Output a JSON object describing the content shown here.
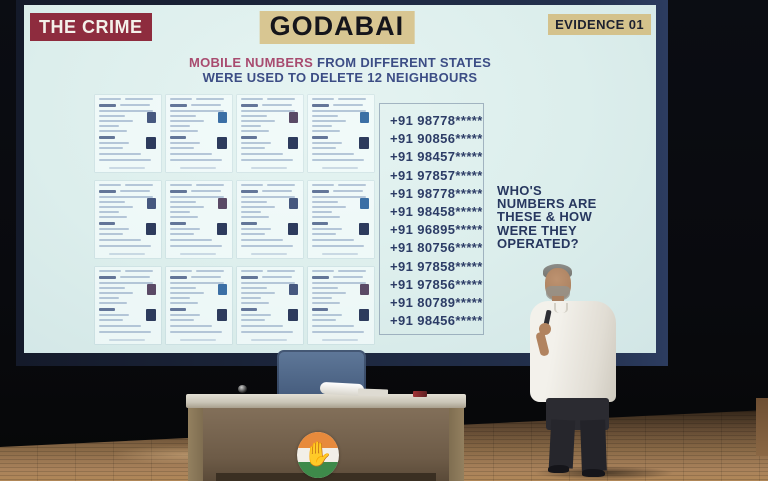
{
  "screen": {
    "crime_badge": "THE CRIME",
    "title_badge": "GODABAI",
    "evidence_badge": "EVIDENCE 01",
    "subtitle_highlight": "MOBILE NUMBERS",
    "subtitle_rest": " FROM DIFFERENT STATES",
    "subtitle_line2": "WERE USED TO DELETE 12 NEIGHBOURS",
    "phone_numbers": [
      "+91 98778*****",
      "+91 90856*****",
      "+91 98457*****",
      "+91 97857*****",
      "+91 98778*****",
      "+91 98458*****",
      "+91 96895*****",
      "+91 80756*****",
      "+91 97858*****",
      "+91 97856*****",
      "+91 80789*****",
      "+91 98456*****"
    ],
    "question_text": "WHO'S\nNUMBERS ARE\nTHESE & HOW\nWERE THEY\nOPERATED?",
    "documents_grid": {
      "rows": 3,
      "cols": 4,
      "content": "voter-deletion-form-cards"
    }
  },
  "desk": {
    "logo_hand_glyph": "✋"
  },
  "colors": {
    "screen_bg": "#dceeec",
    "crime_badge_bg": "#8e2c3e",
    "highlight_badge_bg": "#d8c692",
    "navy_text": "#2c3c66",
    "subtitle_red": "#a84b6f",
    "congress_saffron": "#e78a3c",
    "congress_green": "#3e8a4a",
    "chair_blue": "#5f7899"
  }
}
